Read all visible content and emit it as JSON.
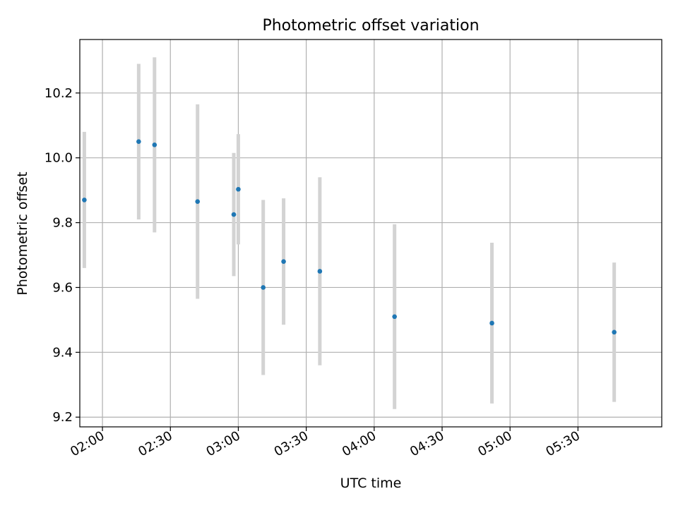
{
  "chart_data": {
    "type": "scatter",
    "title": "Photometric offset variation",
    "xlabel": "UTC time",
    "ylabel": "Photometric offset",
    "xlim": [
      "01:50",
      "06:07"
    ],
    "ylim": [
      9.17,
      10.365
    ],
    "grid": true,
    "xticks": [
      "02:00",
      "02:30",
      "03:00",
      "03:30",
      "04:00",
      "04:30",
      "05:00",
      "05:30"
    ],
    "yticks": [
      9.2,
      9.4,
      9.6,
      9.8,
      10.0,
      10.2
    ],
    "colors": {
      "points": "#1f77b4",
      "errorbars": "#d3d3d3",
      "grid": "#b0b0b0"
    },
    "series": [
      {
        "points": [
          {
            "x": "01:52",
            "y": 9.87,
            "err": 0.21
          },
          {
            "x": "02:16",
            "y": 10.05,
            "err": 0.24
          },
          {
            "x": "02:23",
            "y": 10.04,
            "err": 0.27
          },
          {
            "x": "02:42",
            "y": 9.865,
            "err": 0.3
          },
          {
            "x": "02:58",
            "y": 9.825,
            "err": 0.19
          },
          {
            "x": "03:00",
            "y": 9.903,
            "err": 0.17
          },
          {
            "x": "03:11",
            "y": 9.6,
            "err": 0.27
          },
          {
            "x": "03:20",
            "y": 9.68,
            "err": 0.195
          },
          {
            "x": "03:36",
            "y": 9.65,
            "err": 0.29
          },
          {
            "x": "04:09",
            "y": 9.51,
            "err": 0.285
          },
          {
            "x": "04:52",
            "y": 9.49,
            "err": 0.248
          },
          {
            "x": "05:46",
            "y": 9.462,
            "err": 0.215
          }
        ]
      }
    ]
  }
}
